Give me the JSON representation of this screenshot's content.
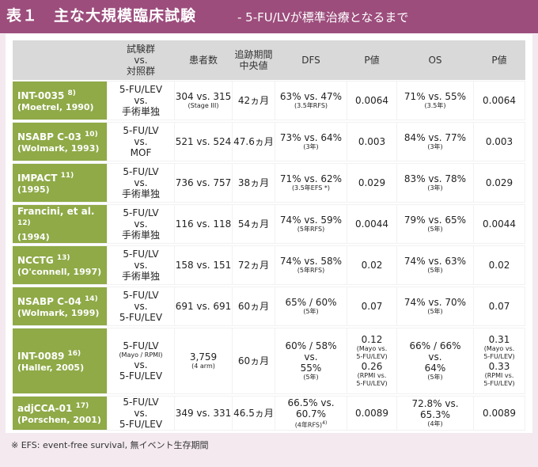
{
  "title": {
    "main": "表１　主な大規模臨床試験",
    "sub": "- 5-FU/LVが標準治療となるまで"
  },
  "headers": {
    "col1": [
      "試験群",
      "vs.",
      "対照群"
    ],
    "col2": "患者数",
    "col3": [
      "追跡期間",
      "中央値"
    ],
    "col4": "DFS",
    "col5": "P値",
    "col6": "OS",
    "col7": "P値"
  },
  "rows": [
    {
      "name": "INT-0035",
      "sup": "8)",
      "sub": "(Moetrel, 1990)",
      "arm": [
        "5-FU/LEV",
        "vs.",
        "手術単独"
      ],
      "n": "304 vs. 315",
      "n_note": "(Stage III)",
      "fu": "42ヵ月",
      "dfs": "63% vs. 47%",
      "dfs_note": "(3.5年RFS)",
      "p1": "0.0064",
      "os": "71% vs. 55%",
      "os_note": "(3.5年)",
      "p2": "0.0064"
    },
    {
      "name": "NSABP C-03",
      "sup": "10)",
      "sub": "(Wolmark, 1993)",
      "arm": [
        "5-FU/LV",
        "vs.",
        "MOF"
      ],
      "n": "521 vs. 524",
      "n_note": "",
      "fu": "47.6ヵ月",
      "dfs": "73% vs. 64%",
      "dfs_note": "(3年)",
      "p1": "0.003",
      "os": "84% vs. 77%",
      "os_note": "(3年)",
      "p2": "0.003"
    },
    {
      "name": "IMPACT",
      "sup": "11)",
      "sub": "(1995)",
      "arm": [
        "5-FU/LV",
        "vs.",
        "手術単独"
      ],
      "n": "736 vs. 757",
      "n_note": "",
      "fu": "38ヵ月",
      "dfs": "71% vs. 62%",
      "dfs_note": "(3.5年EFS *)",
      "p1": "0.029",
      "os": "83% vs. 78%",
      "os_note": "(3年)",
      "p2": "0.029"
    },
    {
      "name": "Francini, et al.",
      "sup": "12)",
      "sub": "(1994)",
      "arm": [
        "5-FU/LV",
        "vs.",
        "手術単独"
      ],
      "n": "116 vs. 118",
      "n_note": "",
      "fu": "54ヵ月",
      "dfs": "74% vs. 59%",
      "dfs_note": "(5年RFS)",
      "p1": "0.0044",
      "os": "79% vs. 65%",
      "os_note": "(5年)",
      "p2": "0.0044"
    },
    {
      "name": "NCCTG",
      "sup": "13)",
      "sub": "(O'connell, 1997)",
      "arm": [
        "5-FU/LV",
        "vs.",
        "手術単独"
      ],
      "n": "158 vs. 151",
      "n_note": "",
      "fu": "72ヵ月",
      "dfs": "74% vs. 58%",
      "dfs_note": "(5年RFS)",
      "p1": "0.02",
      "os": "74% vs. 63%",
      "os_note": "(5年)",
      "p2": "0.02"
    },
    {
      "name": "NSABP C-04",
      "sup": "14)",
      "sub": "(Wolmark, 1999)",
      "arm": [
        "5-FU/LV",
        "vs.",
        "5-FU/LEV"
      ],
      "n": "691 vs. 691",
      "n_note": "",
      "fu": "60ヵ月",
      "dfs": "65% / 60%",
      "dfs_note": "(5年)",
      "p1": "0.07",
      "os": "74% vs. 70%",
      "os_note": "(5年)",
      "p2": "0.07"
    },
    {
      "name": "INT-0089",
      "sup": "16)",
      "sub": "(Haller, 2005)",
      "arm": [
        "5-FU/LV",
        "(Mayo / RPMI)",
        "vs.",
        "5-FU/LEV"
      ],
      "n": "3,759",
      "n_note": "(4 arm)",
      "fu": "60ヵ月",
      "dfs": "60% / 58%",
      "dfs_mid": "vs.",
      "dfs2": "55%",
      "dfs_note": "(5年)",
      "p1_a": "0.12",
      "p1_a_note": [
        "(Mayo vs.",
        "5-FU/LEV)"
      ],
      "p1_b": "0.26",
      "p1_b_note": [
        "(RPMI vs.",
        "5-FU/LEV)"
      ],
      "os": "66% / 66%",
      "os_mid": "vs.",
      "os2": "64%",
      "os_note": "(5年)",
      "p2_a": "0.31",
      "p2_a_note": [
        "(Mayo vs.",
        "5-FU/LEV)"
      ],
      "p2_b": "0.33",
      "p2_b_note": [
        "(RPMI vs.",
        "5-FU/LEV)"
      ]
    },
    {
      "name": "adjCCA-01",
      "sup": "17)",
      "sub": "(Porschen, 2001)",
      "arm": [
        "5-FU/LV",
        "vs.",
        "5-FU/LEV"
      ],
      "n": "349 vs. 331",
      "n_note": "",
      "fu": "46.5ヵ月",
      "dfs": "66.5% vs. 60.7%",
      "dfs_note": "(4年RFS)",
      "dfs_sup": "4)",
      "p1": "0.0089",
      "os": "72.8% vs. 65.3%",
      "os_note": "(4年)",
      "p2": "0.0089"
    }
  ],
  "footnote": "※ EFS: event-free survival, 無イベント生存期間",
  "colors": {
    "title_bg": "#9c4d7c",
    "label_bg": "#8faa47",
    "header_bg": "#d9d9d9",
    "outer_bg": "#f3e9ef"
  }
}
